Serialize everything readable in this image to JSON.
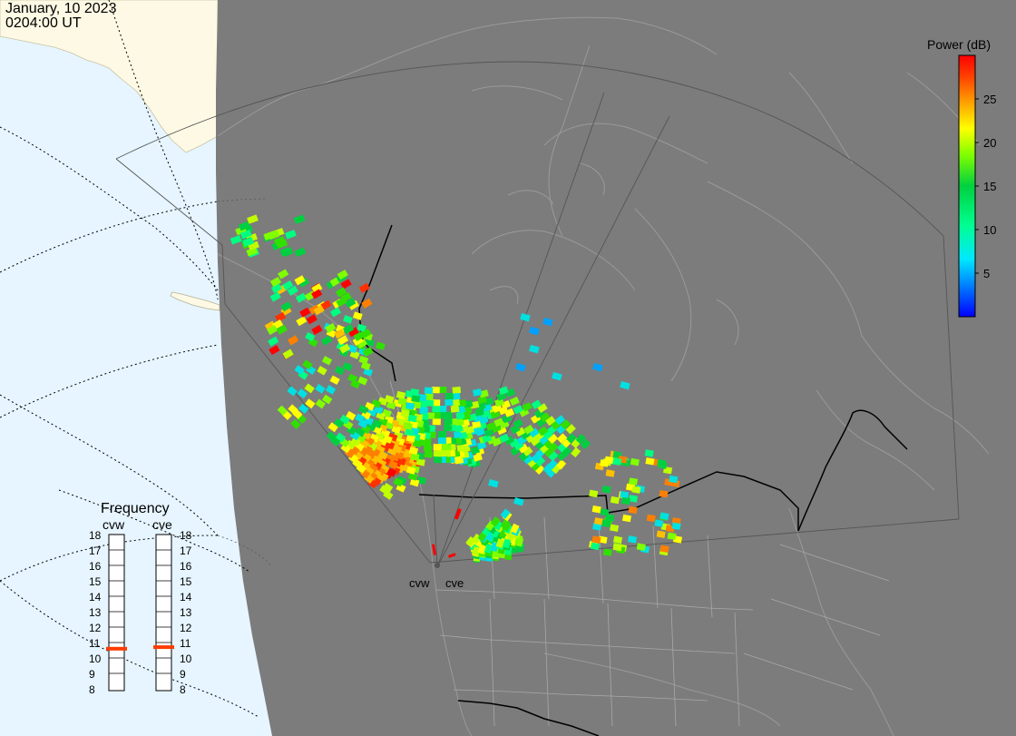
{
  "header": {
    "date": "January, 10 2023",
    "time": "0204:00 UT"
  },
  "legend": {
    "title": "Power (dB)",
    "ticks": [
      {
        "value": 25,
        "label": "25"
      },
      {
        "value": 20,
        "label": "20"
      },
      {
        "value": 15,
        "label": "15"
      },
      {
        "value": 10,
        "label": "10"
      },
      {
        "value": 5,
        "label": "5"
      }
    ],
    "range": [
      0,
      30
    ],
    "colors": [
      "#0000ff",
      "#0080ff",
      "#00e0ff",
      "#00ffa0",
      "#00d040",
      "#60ff00",
      "#c8ff00",
      "#ffff00",
      "#ffa000",
      "#ff6000",
      "#ff0000"
    ]
  },
  "frequency_panel": {
    "title": "Frequency",
    "radars": [
      {
        "id": "cvw",
        "label": "cvw",
        "frequency_mhz": 10.6
      },
      {
        "id": "cve",
        "label": "cve",
        "frequency_mhz": 10.7
      }
    ],
    "scale": [
      18,
      17,
      16,
      15,
      14,
      13,
      12,
      11,
      10,
      9,
      8
    ],
    "indicator_color": "#ff3c00"
  },
  "radar_sites": [
    {
      "id": "cvw",
      "label": "cvw"
    },
    {
      "id": "cve",
      "label": "cve"
    }
  ],
  "colors": {
    "ocean": "#e6f5ff",
    "land_day": "#fdf9e4",
    "night": "#7a7a7a",
    "coast": "#909090",
    "fov_line": "#505050"
  }
}
